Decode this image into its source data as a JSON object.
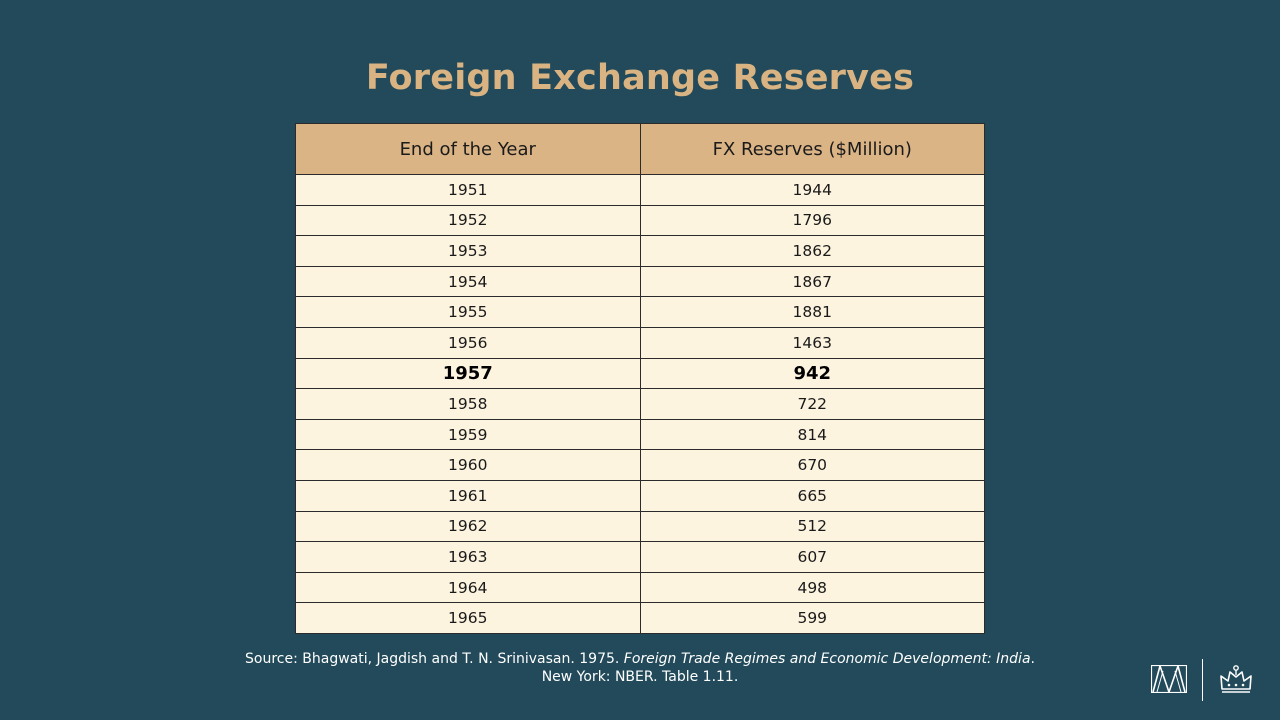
{
  "slide": {
    "title": "Foreign Exchange Reserves"
  },
  "table": {
    "headers": [
      "End of the Year",
      "FX Reserves ($Million)"
    ],
    "rows": [
      {
        "year": "1951",
        "reserves": "1944"
      },
      {
        "year": "1952",
        "reserves": "1796"
      },
      {
        "year": "1953",
        "reserves": "1862"
      },
      {
        "year": "1954",
        "reserves": "1867"
      },
      {
        "year": "1955",
        "reserves": "1881"
      },
      {
        "year": "1956",
        "reserves": "1463"
      },
      {
        "year": "1957",
        "reserves": "942"
      },
      {
        "year": "1958",
        "reserves": "722"
      },
      {
        "year": "1959",
        "reserves": "814"
      },
      {
        "year": "1960",
        "reserves": "670"
      },
      {
        "year": "1961",
        "reserves": "665"
      },
      {
        "year": "1962",
        "reserves": "512"
      },
      {
        "year": "1963",
        "reserves": "607"
      },
      {
        "year": "1964",
        "reserves": "498"
      },
      {
        "year": "1965",
        "reserves": "599"
      }
    ],
    "highlighted_row_year": "1957"
  },
  "source": {
    "line1_prefix": "Source: Bhagwati, Jagdish and T. N. Srinivasan. 1975. ",
    "line1_italic": "Foreign Trade Regimes and Economic Development: India",
    "line1_suffix": ".",
    "line2": "New York:  NBER. Table 1.11."
  },
  "colors": {
    "background": "#224a5a",
    "title": "#d9b382",
    "header_fill": "#dbb486",
    "row_fill": "#fdf4e0"
  },
  "logos": {
    "left": "columbia-m-logo-icon",
    "right": "columbia-crown-logo-icon"
  }
}
